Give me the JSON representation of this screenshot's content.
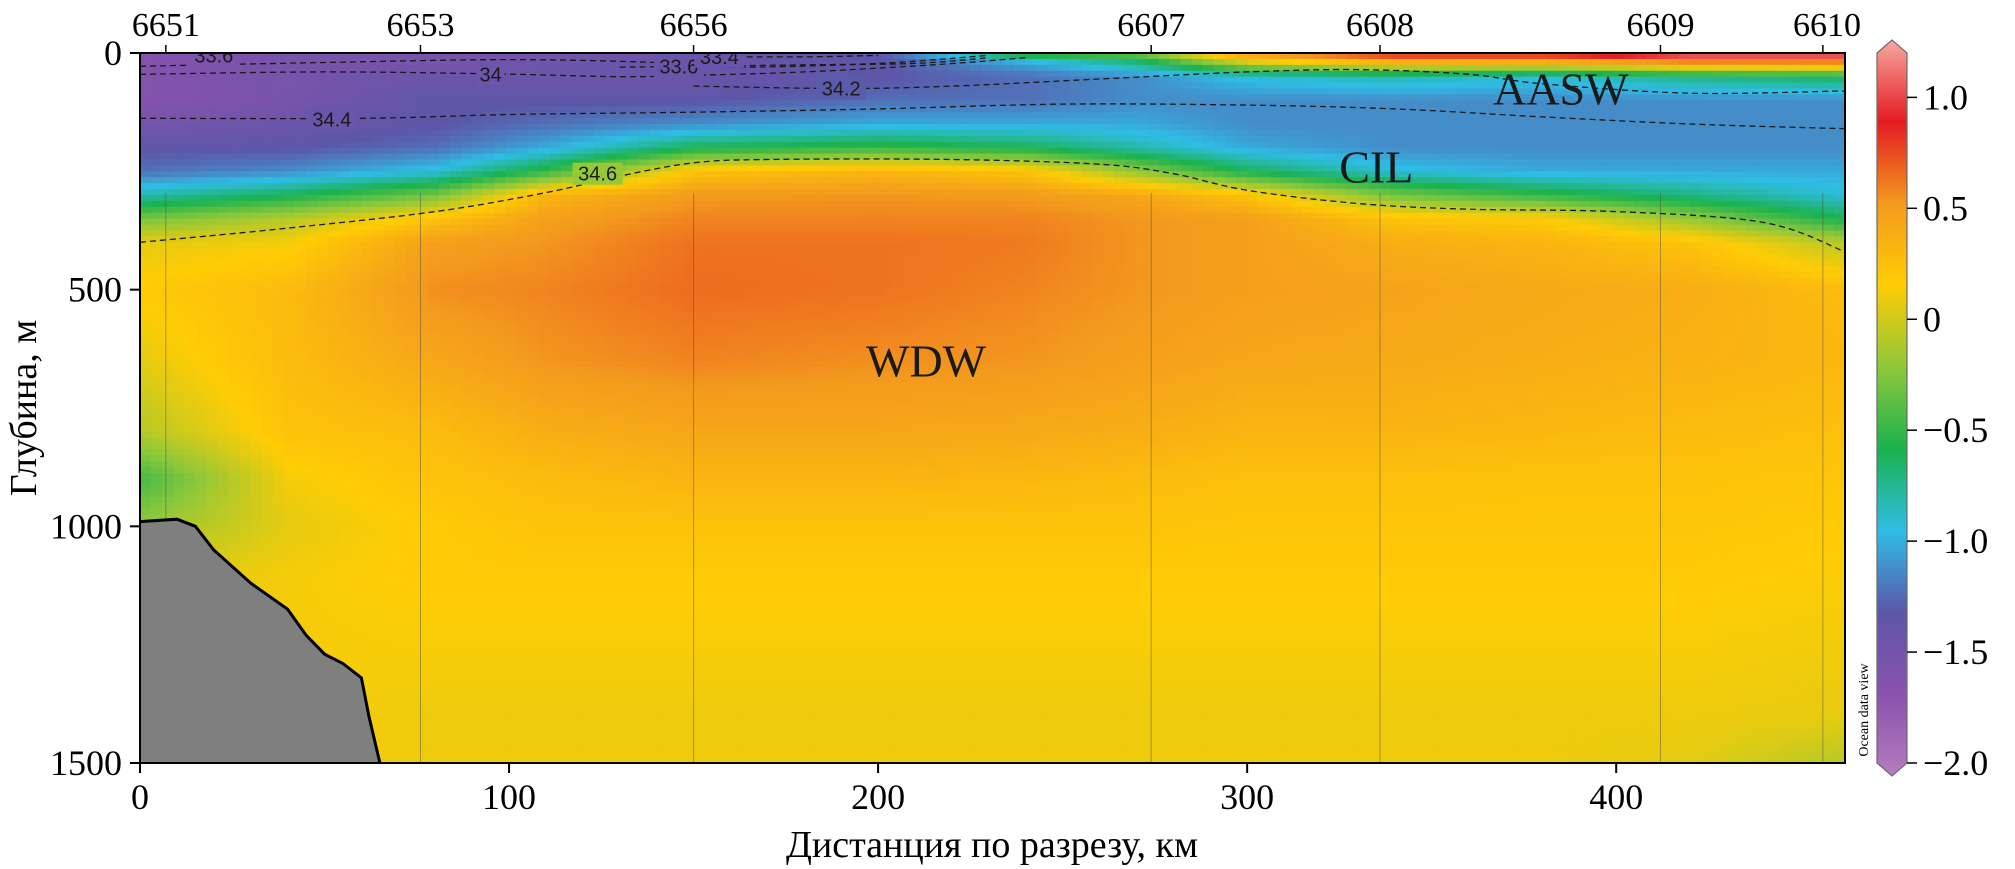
{
  "chart_data": {
    "type": "heatmap",
    "title": "",
    "xlabel": "Дистанция по разрезу, км",
    "ylabel": "Глубина, м",
    "xlim": [
      0,
      462
    ],
    "ylim": [
      1500,
      0
    ],
    "x_ticks": [
      0,
      100,
      200,
      300,
      400
    ],
    "y_ticks": [
      0,
      500,
      1000,
      1500
    ],
    "grid": false,
    "stations": [
      {
        "name": "6651",
        "x": 7
      },
      {
        "name": "6653",
        "x": 76
      },
      {
        "name": "6656",
        "x": 150
      },
      {
        "name": "6607",
        "x": 274
      },
      {
        "name": "6608",
        "x": 336
      },
      {
        "name": "6609",
        "x": 412
      },
      {
        "name": "6610",
        "x": 456
      }
    ],
    "colorbar": {
      "variable": "temperature",
      "range": [
        -2.0,
        1.2
      ],
      "ticks": [
        "1.0",
        "0.5",
        "0",
        "−0.5",
        "−1.0",
        "−1.5",
        "−2.0"
      ],
      "tick_values": [
        1.0,
        0.5,
        0,
        -0.5,
        -1.0,
        -1.5,
        -2.0
      ],
      "watermark": "Ocean data view",
      "colors": [
        "#b57cc0",
        "#8a52ad",
        "#5d56a8",
        "#2fbde6",
        "#1bb24e",
        "#8ec83a",
        "#ffcc05",
        "#f39a1e",
        "#e41b22",
        "#f6a8a0"
      ]
    },
    "water_masses": [
      {
        "label": "AASW",
        "x": 385,
        "depth": 75
      },
      {
        "label": "CIL",
        "x": 335,
        "depth": 240
      },
      {
        "label": "WDW",
        "x": 213,
        "depth": 650
      }
    ],
    "contours": [
      {
        "value": "33.6",
        "label_x": 20,
        "label_depth": 5,
        "points": [
          [
            0,
            28
          ],
          [
            50,
            20
          ],
          [
            100,
            14
          ],
          [
            140,
            20
          ],
          [
            160,
            30
          ],
          [
            200,
            22
          ],
          [
            230,
            5
          ]
        ]
      },
      {
        "value": "34",
        "label_x": 95,
        "label_depth": 45,
        "points": [
          [
            0,
            45
          ],
          [
            50,
            40
          ],
          [
            95,
            44
          ],
          [
            130,
            50
          ],
          [
            150,
            47
          ],
          [
            180,
            40
          ],
          [
            215,
            25
          ],
          [
            240,
            10
          ]
        ]
      },
      {
        "value": "33.6",
        "label_x": 146,
        "label_depth": 28,
        "points": [
          [
            130,
            30
          ],
          [
            150,
            28
          ],
          [
            180,
            25
          ],
          [
            210,
            22
          ],
          [
            230,
            10
          ]
        ]
      },
      {
        "value": "33.4",
        "label_x": 157,
        "label_depth": 8,
        "points": [
          [
            140,
            8
          ],
          [
            180,
            8
          ],
          [
            200,
            5
          ]
        ]
      },
      {
        "value": "34.2",
        "label_x": 190,
        "label_depth": 75,
        "points": [
          [
            150,
            70
          ],
          [
            190,
            75
          ],
          [
            220,
            70
          ],
          [
            260,
            55
          ],
          [
            300,
            40
          ],
          [
            330,
            35
          ],
          [
            360,
            45
          ],
          [
            380,
            65
          ],
          [
            420,
            85
          ],
          [
            462,
            80
          ]
        ]
      },
      {
        "value": "34.4",
        "label_x": 52,
        "label_depth": 140,
        "points": [
          [
            0,
            138
          ],
          [
            60,
            138
          ],
          [
            100,
            130
          ],
          [
            150,
            125
          ],
          [
            200,
            118
          ],
          [
            250,
            108
          ],
          [
            300,
            110
          ],
          [
            340,
            118
          ],
          [
            380,
            135
          ],
          [
            420,
            150
          ],
          [
            462,
            160
          ]
        ]
      },
      {
        "value": "34.6",
        "label_x": 124,
        "label_depth": 255,
        "points": [
          [
            0,
            400
          ],
          [
            40,
            370
          ],
          [
            80,
            335
          ],
          [
            110,
            295
          ],
          [
            130,
            260
          ],
          [
            150,
            232
          ],
          [
            170,
            225
          ],
          [
            220,
            225
          ],
          [
            260,
            235
          ],
          [
            280,
            255
          ],
          [
            300,
            290
          ],
          [
            330,
            318
          ],
          [
            360,
            330
          ],
          [
            400,
            335
          ],
          [
            440,
            358
          ],
          [
            462,
            420
          ]
        ]
      }
    ],
    "seafloor": {
      "color": "#7f7f7f",
      "points": [
        [
          0,
          990
        ],
        [
          10,
          985
        ],
        [
          15,
          1000
        ],
        [
          20,
          1050
        ],
        [
          30,
          1120
        ],
        [
          40,
          1175
        ],
        [
          45,
          1230
        ],
        [
          50,
          1270
        ],
        [
          55,
          1290
        ],
        [
          60,
          1320
        ],
        [
          62,
          1400
        ],
        [
          65,
          1500
        ]
      ]
    },
    "temperature_field": {
      "depth_levels": [
        0,
        20,
        50,
        100,
        150,
        200,
        250,
        300,
        350,
        400,
        500,
        650,
        800,
        900,
        1000,
        1100,
        1200,
        1300,
        1400,
        1500
      ],
      "profiles": [
        {
          "x": 0,
          "temps": [
            -1.6,
            -1.6,
            -1.6,
            -1.6,
            -1.5,
            -1.3,
            -1.2,
            -0.8,
            -0.3,
            0.05,
            0.15,
            0.05,
            -0.1,
            -0.45,
            -0.2,
            0.0,
            0.05,
            0.05,
            0.05,
            0.05
          ]
        },
        {
          "x": 40,
          "temps": [
            -1.5,
            -1.5,
            -1.5,
            -1.5,
            -1.4,
            -1.3,
            -1.1,
            -0.6,
            -0.1,
            0.1,
            0.25,
            0.25,
            0.2,
            0.1,
            0.05,
            0.1,
            0.1,
            0.1,
            0.1,
            0.1
          ]
        },
        {
          "x": 80,
          "temps": [
            -1.5,
            -1.5,
            -1.4,
            -1.3,
            -1.3,
            -1.2,
            -0.9,
            -0.3,
            0.2,
            0.45,
            0.52,
            0.4,
            0.25,
            0.2,
            0.15,
            0.15,
            0.12,
            0.1,
            0.08,
            0.08
          ]
        },
        {
          "x": 110,
          "temps": [
            -1.5,
            -1.4,
            -1.4,
            -1.3,
            -1.2,
            -1.0,
            -0.5,
            0.3,
            0.45,
            0.5,
            0.55,
            0.5,
            0.35,
            0.25,
            0.2,
            0.15,
            0.12,
            0.1,
            0.08,
            0.08
          ]
        },
        {
          "x": 150,
          "temps": [
            -1.4,
            -1.4,
            -1.4,
            -1.3,
            -1.1,
            -0.6,
            0.2,
            0.48,
            0.55,
            0.6,
            0.62,
            0.55,
            0.4,
            0.3,
            0.2,
            0.15,
            0.12,
            0.1,
            0.08,
            0.08
          ]
        },
        {
          "x": 200,
          "temps": [
            -1.3,
            -1.3,
            -1.3,
            -1.2,
            -1.0,
            -0.5,
            0.3,
            0.5,
            0.55,
            0.6,
            0.6,
            0.52,
            0.4,
            0.3,
            0.2,
            0.15,
            0.12,
            0.1,
            0.08,
            0.08
          ]
        },
        {
          "x": 240,
          "temps": [
            -0.4,
            -1.0,
            -1.2,
            -1.2,
            -1.0,
            -0.6,
            0.2,
            0.48,
            0.55,
            0.58,
            0.55,
            0.5,
            0.38,
            0.28,
            0.2,
            0.15,
            0.12,
            0.1,
            0.08,
            0.08
          ]
        },
        {
          "x": 270,
          "temps": [
            -0.3,
            -0.7,
            -1.1,
            -1.1,
            -1.0,
            -0.8,
            -0.2,
            0.4,
            0.5,
            0.5,
            0.5,
            0.45,
            0.35,
            0.25,
            0.2,
            0.15,
            0.12,
            0.1,
            0.08,
            0.08
          ]
        },
        {
          "x": 300,
          "temps": [
            0.5,
            0.0,
            -0.9,
            -1.1,
            -1.1,
            -1.0,
            -0.6,
            0.2,
            0.45,
            0.45,
            0.45,
            0.4,
            0.3,
            0.22,
            0.18,
            0.15,
            0.12,
            0.1,
            0.08,
            0.08
          ]
        },
        {
          "x": 340,
          "temps": [
            0.9,
            0.3,
            -0.8,
            -1.1,
            -1.1,
            -1.1,
            -0.9,
            -0.3,
            0.2,
            0.35,
            0.42,
            0.38,
            0.3,
            0.22,
            0.18,
            0.15,
            0.12,
            0.1,
            0.08,
            0.08
          ]
        },
        {
          "x": 380,
          "temps": [
            0.9,
            0.3,
            -0.9,
            -1.1,
            -1.1,
            -1.1,
            -1.0,
            -0.5,
            0.15,
            0.3,
            0.38,
            0.35,
            0.28,
            0.2,
            0.18,
            0.15,
            0.12,
            0.1,
            0.08,
            0.08
          ]
        },
        {
          "x": 420,
          "temps": [
            1.2,
            0.5,
            -0.7,
            -1.1,
            -1.1,
            -1.1,
            -1.0,
            -0.7,
            -0.2,
            0.2,
            0.35,
            0.32,
            0.25,
            0.2,
            0.18,
            0.15,
            0.12,
            0.1,
            0.08,
            0.05
          ]
        },
        {
          "x": 462,
          "temps": [
            1.2,
            0.5,
            -0.6,
            -1.1,
            -1.1,
            -1.1,
            -1.0,
            -0.9,
            -0.6,
            -0.1,
            0.25,
            0.28,
            0.22,
            0.18,
            0.15,
            0.12,
            0.1,
            0.08,
            0.06,
            -0.1
          ]
        }
      ]
    }
  }
}
